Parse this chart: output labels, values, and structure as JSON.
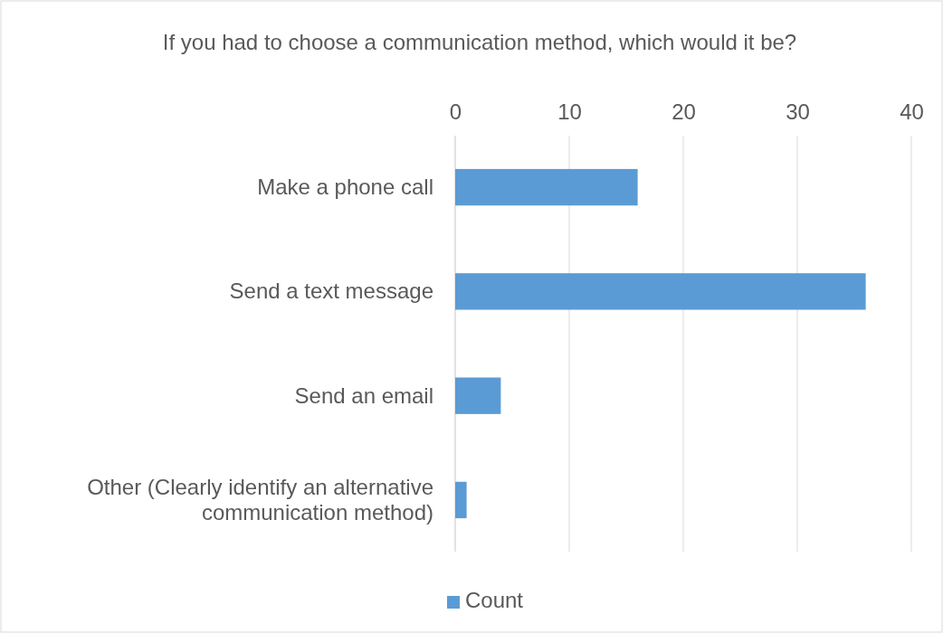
{
  "chart_data": {
    "type": "bar",
    "orientation": "horizontal",
    "title": "If you had to choose a communication method, which would it be?",
    "categories": [
      "Make a phone call",
      "Send a text message",
      "Send an email",
      "Other (Clearly identify an alternative communication method)"
    ],
    "series": [
      {
        "name": "Count",
        "color": "#5b9bd5",
        "values": [
          16,
          36,
          4,
          1
        ]
      }
    ],
    "xlim": [
      0,
      40
    ],
    "xticks": [
      0,
      10,
      20,
      30,
      40
    ],
    "grid": "x",
    "legend": "bottom"
  }
}
